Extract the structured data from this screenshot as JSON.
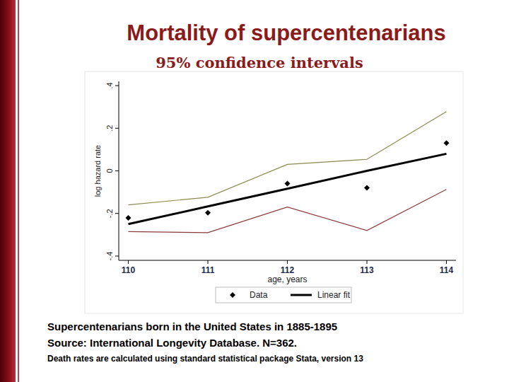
{
  "chart_data": {
    "type": "line",
    "title": "Mortality of supercentenarians",
    "subtitle": "95% confidence intervals",
    "x_label": "age, years",
    "y_label": "log hazard rate",
    "x": [
      110,
      111,
      112,
      113,
      114
    ],
    "xlim": [
      109.88,
      114.12
    ],
    "xticks": [
      110,
      111,
      112,
      113,
      114
    ],
    "ylim": [
      -0.42,
      0.42
    ],
    "yticks": [
      {
        "value": -0.4,
        "label": "-.4"
      },
      {
        "value": -0.2,
        "label": "-.2"
      },
      0,
      {
        "value": 0.2,
        "label": ".2"
      },
      {
        "value": 0.4,
        "label": ".4"
      }
    ],
    "grid": false,
    "legend": "bottom",
    "series": [
      {
        "name": "Data",
        "type": "scatter",
        "marker": "diamond",
        "color": "#000000",
        "values": [
          -0.221,
          -0.197,
          -0.06,
          -0.08,
          0.13
        ]
      },
      {
        "name": "Linear fit",
        "type": "line",
        "line_style": "solid",
        "color": "#000000",
        "values": [
          -0.25,
          -0.167,
          -0.084,
          0.0,
          0.08
        ]
      },
      {
        "type": "line",
        "line_style": "solid",
        "color": "#8a8a4e",
        "values": [
          -0.16,
          -0.124,
          0.03,
          0.054,
          0.278
        ]
      },
      {
        "type": "line",
        "line_style": "solid",
        "color": "#8b3a3a",
        "values": [
          -0.285,
          -0.29,
          -0.17,
          -0.28,
          -0.087
        ]
      }
    ],
    "annotations": [
      "Supercentenarians born in the United States in 1885-1895",
      "Source: International Longevity Database. N=362.",
      "Death rates are calculated using standard statistical package Stata, version 13"
    ]
  }
}
